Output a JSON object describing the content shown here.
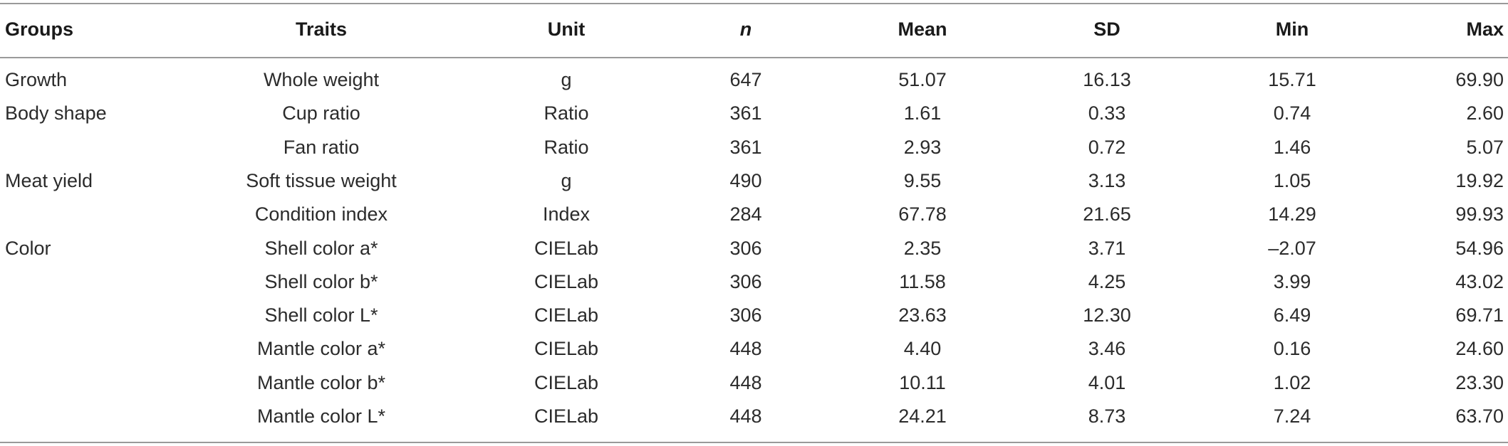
{
  "table": {
    "header": [
      "Groups",
      "Traits",
      "Unit",
      "n",
      "Mean",
      "SD",
      "Min",
      "Max"
    ],
    "groups": [
      {
        "group": "Growth",
        "rows": [
          [
            "Whole weight",
            "g",
            "647",
            "51.07",
            "16.13",
            "15.71",
            "69.90"
          ]
        ]
      },
      {
        "group": "Body shape",
        "rows": [
          [
            "Cup ratio",
            "Ratio",
            "361",
            "1.61",
            "0.33",
            "0.74",
            "2.60"
          ],
          [
            "Fan ratio",
            "Ratio",
            "361",
            "2.93",
            "0.72",
            "1.46",
            "5.07"
          ]
        ]
      },
      {
        "group": "Meat yield",
        "rows": [
          [
            "Soft tissue weight",
            "g",
            "490",
            "9.55",
            "3.13",
            "1.05",
            "19.92"
          ],
          [
            "Condition index",
            "Index",
            "284",
            "67.78",
            "21.65",
            "14.29",
            "99.93"
          ]
        ]
      },
      {
        "group": "Color",
        "rows": [
          [
            "Shell color a*",
            "CIELab",
            "306",
            "2.35",
            "3.71",
            "–2.07",
            "54.96"
          ],
          [
            "Shell color b*",
            "CIELab",
            "306",
            "11.58",
            "4.25",
            "3.99",
            "43.02"
          ],
          [
            "Shell color L*",
            "CIELab",
            "306",
            "23.63",
            "12.30",
            "6.49",
            "69.71"
          ],
          [
            "Mantle color a*",
            "CIELab",
            "448",
            "4.40",
            "3.46",
            "0.16",
            "24.60"
          ],
          [
            "Mantle color b*",
            "CIELab",
            "448",
            "10.11",
            "4.01",
            "1.02",
            "23.30"
          ],
          [
            "Mantle color L*",
            "CIELab",
            "448",
            "24.21",
            "8.73",
            "7.24",
            "63.70"
          ]
        ]
      }
    ]
  }
}
